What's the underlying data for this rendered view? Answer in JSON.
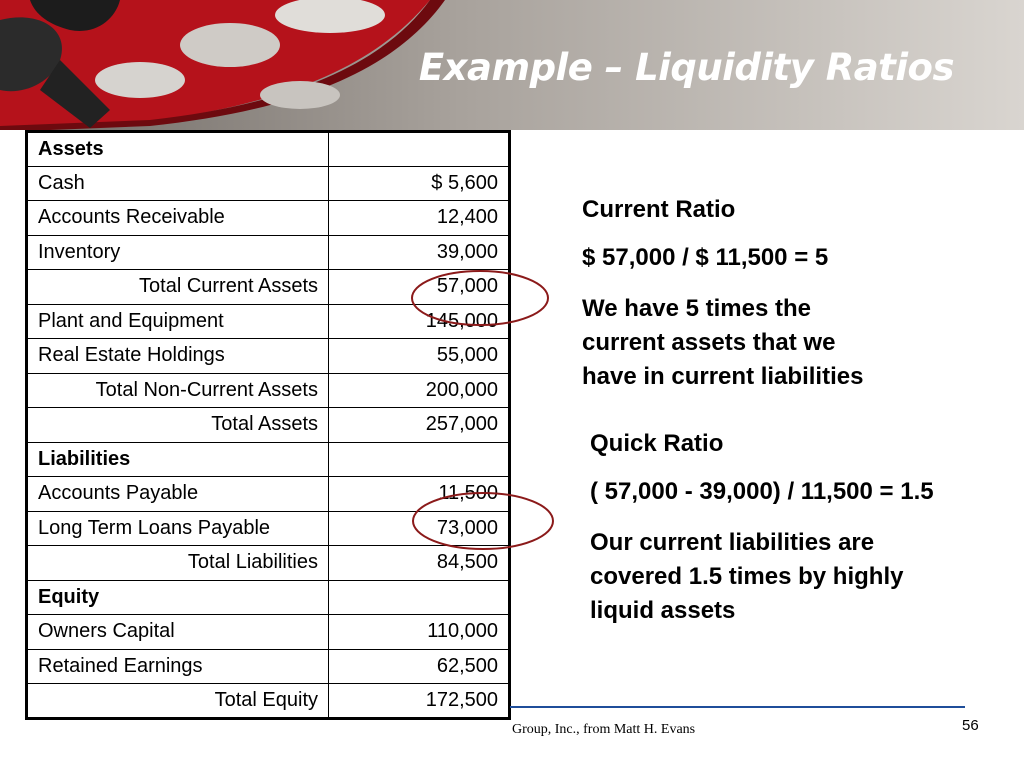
{
  "header": {
    "title": "Example – Liquidity Ratios"
  },
  "table": {
    "rows": [
      [
        "Assets"
      ],
      [
        "Cash",
        "$ 5,600"
      ],
      [
        "Accounts Receivable",
        "12,400"
      ],
      [
        "Inventory",
        "39,000"
      ],
      [
        "Total Current Assets",
        "57,000"
      ],
      [
        "Plant and Equipment",
        "145,000"
      ],
      [
        "Real Estate Holdings",
        "55,000"
      ],
      [
        "Total Non-Current Assets",
        "200,000"
      ],
      [
        "Total Assets",
        "257,000"
      ],
      [
        "Liabilities"
      ],
      [
        "Accounts Payable",
        "11,500"
      ],
      [
        "Long Term Loans Payable",
        "73,000"
      ],
      [
        "Total Liabilities",
        "84,500"
      ],
      [
        "Equity"
      ],
      [
        "Owners Capital",
        "110,000"
      ],
      [
        "Retained Earnings",
        "62,500"
      ],
      [
        "Total Equity",
        "172,500"
      ]
    ]
  },
  "current_ratio": {
    "heading": "Current Ratio",
    "formula": "$ 57,000 / $ 11,500 = 5",
    "explanation": [
      "We have 5 times the",
      "current assets that we",
      "have in current liabilities"
    ]
  },
  "quick_ratio": {
    "heading": "Quick Ratio",
    "formula": "( 57,000 - 39,000) / 11,500 = 1.5",
    "explanation": [
      "Our current liabilities are",
      "covered 1.5 times by highly",
      "liquid assets"
    ]
  },
  "footer": {
    "source": "Group, Inc., from Matt H. Evans",
    "page_number": "56"
  }
}
